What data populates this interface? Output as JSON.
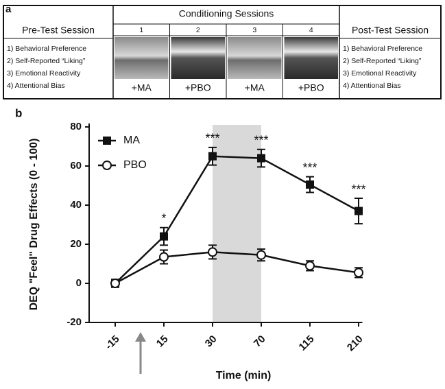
{
  "panel_a": {
    "label": "a",
    "pre_test": {
      "title": "Pre-Test Session",
      "items": [
        "1) Behavioral Preference",
        "2) Self-Reported “Liking”",
        "3) Emotional Reactivity",
        "4) Attentional Bias"
      ]
    },
    "conditioning": {
      "title": "Conditioning Sessions",
      "sessions": [
        {
          "number": "1",
          "drug": "+MA"
        },
        {
          "number": "2",
          "drug": "+PBO"
        },
        {
          "number": "3",
          "drug": "+MA"
        },
        {
          "number": "4",
          "drug": "+PBO"
        }
      ]
    },
    "post_test": {
      "title": "Post-Test Session",
      "items": [
        "1) Behavioral Preference",
        "2) Self-Reported “Liking”",
        "3) Emotional Reactivity",
        "4) Attentional Bias"
      ]
    }
  },
  "chart_data": {
    "type": "line",
    "label": "b",
    "xlabel": "Time (min)",
    "ylabel": "DEQ \"Feel\" Drug Effects (0 - 100)",
    "categories": [
      "-15",
      "15",
      "30",
      "70",
      "115",
      "210"
    ],
    "shaded_categories": [
      2,
      3
    ],
    "ylim": [
      -20,
      80
    ],
    "yticks": [
      -20,
      0,
      20,
      40,
      60,
      80
    ],
    "legend": "upper left",
    "series": [
      {
        "name": "MA",
        "color": "#111111",
        "marker": "filled-square",
        "values": [
          0,
          24,
          65,
          64,
          50.5,
          37
        ],
        "errors": [
          1.5,
          4.5,
          4.5,
          4.5,
          4,
          6.5
        ],
        "significance": [
          null,
          "*",
          "***",
          "***",
          "***",
          "***"
        ]
      },
      {
        "name": "PBO",
        "color": "#111111",
        "marker": "open-circle",
        "values": [
          0,
          13.5,
          16,
          14.5,
          9,
          5.5
        ],
        "errors": [
          2,
          3.5,
          3.5,
          3,
          2.5,
          2.5
        ]
      }
    ]
  }
}
